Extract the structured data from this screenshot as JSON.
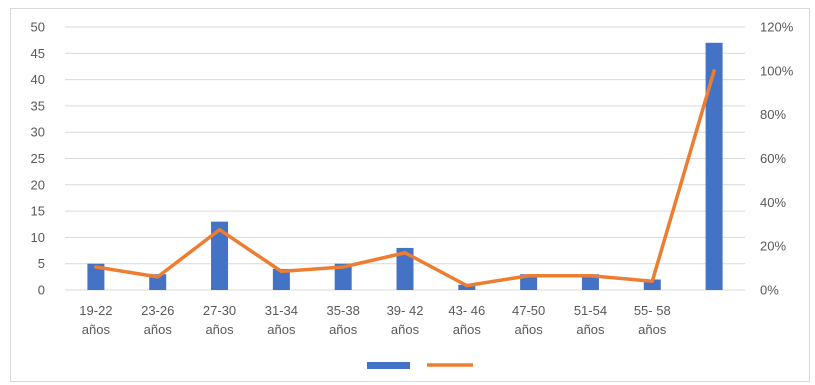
{
  "chart_data": {
    "type": "bar",
    "categories": [
      "19-22 años",
      "23-26 años",
      "27-30 años",
      "31-34 años",
      "35-38 años",
      "39- 42 años",
      "43- 46 años",
      "47-50 años",
      "51-54 años",
      "55- 58 años",
      ""
    ],
    "category_lines": [
      [
        "19-22",
        "años"
      ],
      [
        "23-26",
        "años"
      ],
      [
        "27-30",
        "años"
      ],
      [
        "31-34",
        "años"
      ],
      [
        "35-38",
        "años"
      ],
      [
        "39- 42",
        "años"
      ],
      [
        "43- 46",
        "años"
      ],
      [
        "47-50",
        "años"
      ],
      [
        "51-54",
        "años"
      ],
      [
        "55- 58",
        "años"
      ],
      [
        "",
        ""
      ]
    ],
    "series": [
      {
        "type": "bar",
        "axis": "left",
        "color": "#4472C4",
        "values": [
          5,
          3,
          13,
          4,
          5,
          8,
          1,
          3,
          3,
          2,
          47
        ]
      },
      {
        "type": "line",
        "axis": "right",
        "color": "#ED7D31",
        "values": [
          0.105,
          0.06,
          0.275,
          0.085,
          0.105,
          0.17,
          0.02,
          0.065,
          0.065,
          0.04,
          1.0
        ]
      }
    ],
    "y_left": {
      "min": 0,
      "max": 50,
      "step": 5,
      "ticks": [
        "0",
        "5",
        "10",
        "15",
        "20",
        "25",
        "30",
        "35",
        "40",
        "45",
        "50"
      ]
    },
    "y_right": {
      "min": 0,
      "max": 1.2,
      "step": 0.2,
      "ticks": [
        "0%",
        "20%",
        "40%",
        "60%",
        "80%",
        "100%",
        "120%"
      ]
    },
    "grid": true,
    "legend": {
      "position": "bottom",
      "entries": [
        {
          "marker": "bar",
          "color": "#4472C4"
        },
        {
          "marker": "line",
          "color": "#ED7D31"
        }
      ]
    }
  }
}
